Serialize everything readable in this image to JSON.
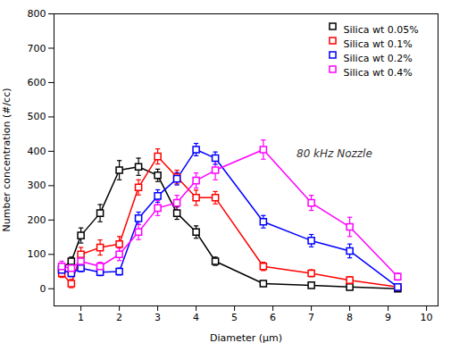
{
  "chart_data": {
    "type": "line",
    "x": [
      0.5,
      0.75,
      1.0,
      1.5,
      2.0,
      2.5,
      3.0,
      3.5,
      4.0,
      4.5,
      5.75,
      7.0,
      8.0,
      9.25
    ],
    "series": [
      {
        "name": "Silica wt 0.05%",
        "color": "#000000",
        "values": [
          60,
          80,
          155,
          220,
          345,
          355,
          330,
          220,
          165,
          80,
          15,
          10,
          5,
          0
        ],
        "errors": [
          12,
          12,
          22,
          25,
          28,
          25,
          18,
          18,
          18,
          12,
          8,
          6,
          5,
          4
        ]
      },
      {
        "name": "Silica wt 0.1%",
        "color": "#ff0000",
        "values": [
          45,
          15,
          100,
          120,
          130,
          295,
          385,
          325,
          265,
          265,
          65,
          45,
          25,
          5
        ],
        "errors": [
          12,
          12,
          20,
          22,
          22,
          22,
          22,
          20,
          22,
          18,
          12,
          10,
          10,
          5
        ]
      },
      {
        "name": "Silica wt 0.2%",
        "color": "#0000ff",
        "values": [
          55,
          45,
          60,
          48,
          50,
          205,
          270,
          320,
          405,
          380,
          195,
          140,
          110,
          5
        ],
        "errors": [
          10,
          10,
          10,
          10,
          10,
          18,
          18,
          18,
          18,
          18,
          18,
          18,
          20,
          5
        ]
      },
      {
        "name": "Silica wt 0.4%",
        "color": "#ff00ff",
        "values": [
          65,
          60,
          80,
          65,
          100,
          165,
          235,
          250,
          315,
          345,
          405,
          250,
          180,
          35
        ],
        "errors": [
          15,
          12,
          15,
          12,
          18,
          22,
          22,
          22,
          22,
          28,
          28,
          22,
          28,
          10
        ]
      }
    ],
    "xlabel": "Diameter (μm)",
    "ylabel": "Number concentration (#/cc)",
    "annotation": "80 kHz Nozzle",
    "xlim": [
      0.3,
      10.3
    ],
    "ylim": [
      -50,
      800
    ],
    "xticks": [
      1,
      2,
      3,
      4,
      5,
      6,
      7,
      8,
      9,
      10
    ],
    "yticks": [
      0,
      100,
      200,
      300,
      400,
      500,
      600,
      700,
      800
    ],
    "legend": "upper right",
    "marker": "square",
    "grid": false
  }
}
